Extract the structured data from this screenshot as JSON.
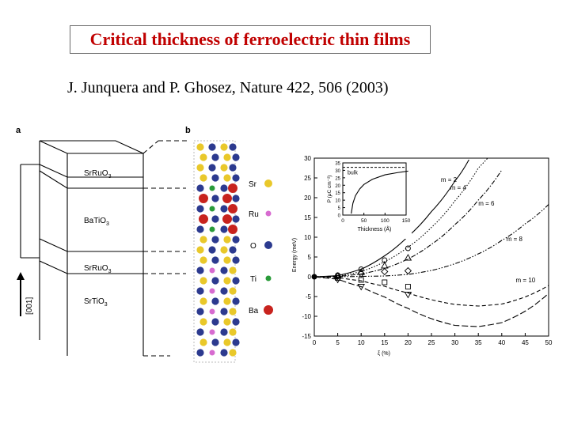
{
  "slide": {
    "title": "Critical thickness of ferroelectric thin films",
    "citation": "J. Junquera and P. Ghosez, Nature 422, 506 (2003)"
  },
  "panel_a": {
    "label": "a",
    "layers": [
      "SrRuO",
      "BaTiO",
      "SrRuO",
      "SrTiO"
    ],
    "subscript": "3",
    "direction": "[001]"
  },
  "panel_b": {
    "label": "b",
    "legend": [
      "Sr",
      "Ru",
      "O",
      "Ti",
      "Ba"
    ],
    "colors": {
      "Sr": "#e9c82a",
      "Ru": "#d76bd0",
      "O": "#2c3a8f",
      "Ti": "#2a9b39",
      "Ba": "#c8231e"
    }
  },
  "chart_data": {
    "type": "line",
    "xlabel": "ξ  (%)",
    "ylabel": "Energy (meV)",
    "xlim": [
      0,
      50
    ],
    "ylim": [
      -15,
      30
    ],
    "xticks": [
      0,
      5,
      10,
      15,
      20,
      25,
      30,
      35,
      40,
      45,
      50
    ],
    "yticks": [
      -15,
      -10,
      -5,
      0,
      5,
      10,
      15,
      20,
      25,
      30
    ],
    "series": [
      {
        "name": "m = 2",
        "style": "solid",
        "points": [
          [
            0,
            0
          ],
          [
            5,
            0.3
          ],
          [
            10,
            1.9
          ],
          [
            15,
            5.3
          ],
          [
            20,
            10.2
          ],
          [
            25,
            16.5
          ],
          [
            30,
            24.2
          ],
          [
            33,
            29.6
          ]
        ]
      },
      {
        "name": "m = 4",
        "style": "dotted",
        "points": [
          [
            0,
            0
          ],
          [
            5,
            0.2
          ],
          [
            10,
            1.3
          ],
          [
            15,
            3.8
          ],
          [
            20,
            7.5
          ],
          [
            25,
            12.5
          ],
          [
            30,
            19.2
          ],
          [
            35,
            27.5
          ],
          [
            37,
            30.5
          ]
        ]
      },
      {
        "name": "m = 6",
        "style": "dashdot",
        "points": [
          [
            0,
            0
          ],
          [
            5,
            0.1
          ],
          [
            10,
            0.7
          ],
          [
            15,
            2.1
          ],
          [
            20,
            4.5
          ],
          [
            25,
            8.2
          ],
          [
            30,
            13.2
          ],
          [
            35,
            19.4
          ],
          [
            40,
            27
          ]
        ]
      },
      {
        "name": "m = 8",
        "style": "dashdotdot",
        "points": [
          [
            0,
            0
          ],
          [
            5,
            0
          ],
          [
            10,
            0.1
          ],
          [
            15,
            0.2
          ],
          [
            20,
            0.6
          ],
          [
            25,
            1.6
          ],
          [
            30,
            3.3
          ],
          [
            35,
            5.8
          ],
          [
            40,
            9.2
          ],
          [
            45,
            13.4
          ],
          [
            50,
            18.3
          ]
        ]
      },
      {
        "name": "m = 10",
        "style": "dashed",
        "points": [
          [
            0,
            0
          ],
          [
            5,
            -0.2
          ],
          [
            10,
            -1
          ],
          [
            15,
            -2.4
          ],
          [
            20,
            -4.1
          ],
          [
            25,
            -5.8
          ],
          [
            30,
            -7
          ],
          [
            35,
            -7.4
          ],
          [
            40,
            -6.9
          ],
          [
            45,
            -5.1
          ],
          [
            50,
            -2.2
          ]
        ]
      },
      {
        "name": "",
        "style": "longdash",
        "points": [
          [
            0,
            0
          ],
          [
            5,
            -0.6
          ],
          [
            10,
            -2.5
          ],
          [
            15,
            -5.1
          ],
          [
            20,
            -8
          ],
          [
            25,
            -10.6
          ],
          [
            30,
            -12.3
          ],
          [
            35,
            -12.6
          ],
          [
            40,
            -11.6
          ],
          [
            45,
            -8.7
          ],
          [
            50,
            -4.2
          ]
        ]
      }
    ],
    "markers": [
      {
        "shape": "circle",
        "points": [
          [
            5,
            0.4
          ],
          [
            10,
            1.9
          ],
          [
            15,
            4.2
          ],
          [
            20,
            7.2
          ]
        ]
      },
      {
        "shape": "triangle-up",
        "points": [
          [
            5,
            0.2
          ],
          [
            10,
            1.2
          ],
          [
            15,
            2.8
          ],
          [
            20,
            4.8
          ]
        ]
      },
      {
        "shape": "diamond",
        "points": [
          [
            5,
            0.1
          ],
          [
            10,
            0.8
          ],
          [
            15,
            1.3
          ],
          [
            20,
            1.5
          ]
        ]
      },
      {
        "shape": "square",
        "points": [
          [
            5,
            -0.3
          ],
          [
            10,
            -0.8
          ],
          [
            15,
            -1.4
          ],
          [
            20,
            -2.5
          ]
        ]
      },
      {
        "shape": "triangle-down",
        "points": [
          [
            5,
            -0.7
          ],
          [
            10,
            -2.5
          ],
          [
            20,
            -4.5
          ]
        ]
      }
    ],
    "labels": [
      {
        "text": "m = 2",
        "x": 27,
        "y": 24
      },
      {
        "text": "m = 4",
        "x": 29,
        "y": 22
      },
      {
        "text": "m = 6",
        "x": 35,
        "y": 18
      },
      {
        "text": "m = 8",
        "x": 41,
        "y": 9
      },
      {
        "text": "m = 10",
        "x": 43,
        "y": -1.4
      }
    ],
    "inset": {
      "xlabel": "Thickness (Å)",
      "ylabel": "P (μC cm⁻²)",
      "xlim": [
        0,
        150
      ],
      "ylim": [
        0,
        35
      ],
      "xticks": [
        0,
        50,
        100,
        150
      ],
      "yticks": [
        0,
        5,
        10,
        15,
        20,
        25,
        30,
        35
      ],
      "bulk_label": "bulk",
      "bulk_value": 32,
      "curve": [
        [
          20,
          1
        ],
        [
          24,
          8
        ],
        [
          30,
          13
        ],
        [
          40,
          17.5
        ],
        [
          50,
          20.5
        ],
        [
          70,
          24
        ],
        [
          100,
          27
        ],
        [
          130,
          28.5
        ],
        [
          155,
          29.5
        ]
      ]
    }
  }
}
